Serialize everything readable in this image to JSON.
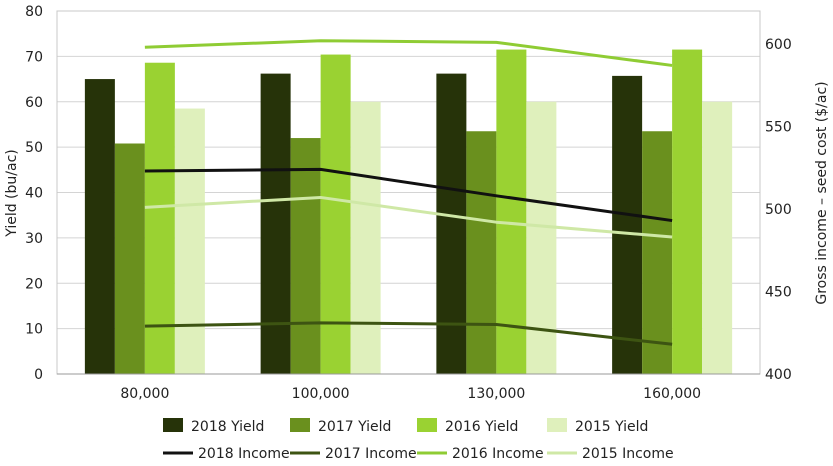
{
  "chart_data": {
    "type": "bar",
    "categories": [
      "80,000",
      "100,000",
      "130,000",
      "160,000"
    ],
    "xlabel": "",
    "ylabel": "Yield (bu/ac)",
    "ylabel_right": "Gross income – seed cost ($/ac)",
    "ylim": [
      0,
      80
    ],
    "ylim_right": [
      400,
      620
    ],
    "yticks": [
      "0",
      "10",
      "20",
      "30",
      "40",
      "50",
      "60",
      "70",
      "80"
    ],
    "yticks_right": [
      "400",
      "450",
      "500",
      "550",
      "600"
    ],
    "grid": true,
    "legend_position": "bottom",
    "series": [
      {
        "name": "2018 Yield",
        "kind": "bar",
        "axis": "left",
        "color": "#263309",
        "values": [
          65.0,
          66.2,
          66.2,
          65.7
        ]
      },
      {
        "name": "2017 Yield",
        "kind": "bar",
        "axis": "left",
        "color": "#6a901e",
        "values": [
          50.8,
          52.0,
          53.5,
          53.5
        ]
      },
      {
        "name": "2016 Yield",
        "kind": "bar",
        "axis": "left",
        "color": "#9ad232",
        "values": [
          68.6,
          70.4,
          71.5,
          71.5
        ]
      },
      {
        "name": "2015 Yield",
        "kind": "bar",
        "axis": "left",
        "color": "#dff0bc",
        "values": [
          58.5,
          60.0,
          60.0,
          60.0
        ]
      },
      {
        "name": "2018 Income",
        "kind": "line",
        "axis": "right",
        "color": "#111111",
        "values": [
          523,
          524,
          508,
          493
        ]
      },
      {
        "name": "2017 Income",
        "kind": "line",
        "axis": "right",
        "color": "#3d5412",
        "values": [
          429,
          431,
          430,
          418
        ]
      },
      {
        "name": "2016 Income",
        "kind": "line",
        "axis": "right",
        "color": "#8fcc34",
        "values": [
          598,
          602,
          601,
          587
        ]
      },
      {
        "name": "2015 Income",
        "kind": "line",
        "axis": "right",
        "color": "#cfe8a6",
        "values": [
          501,
          507,
          492,
          483
        ]
      }
    ]
  }
}
